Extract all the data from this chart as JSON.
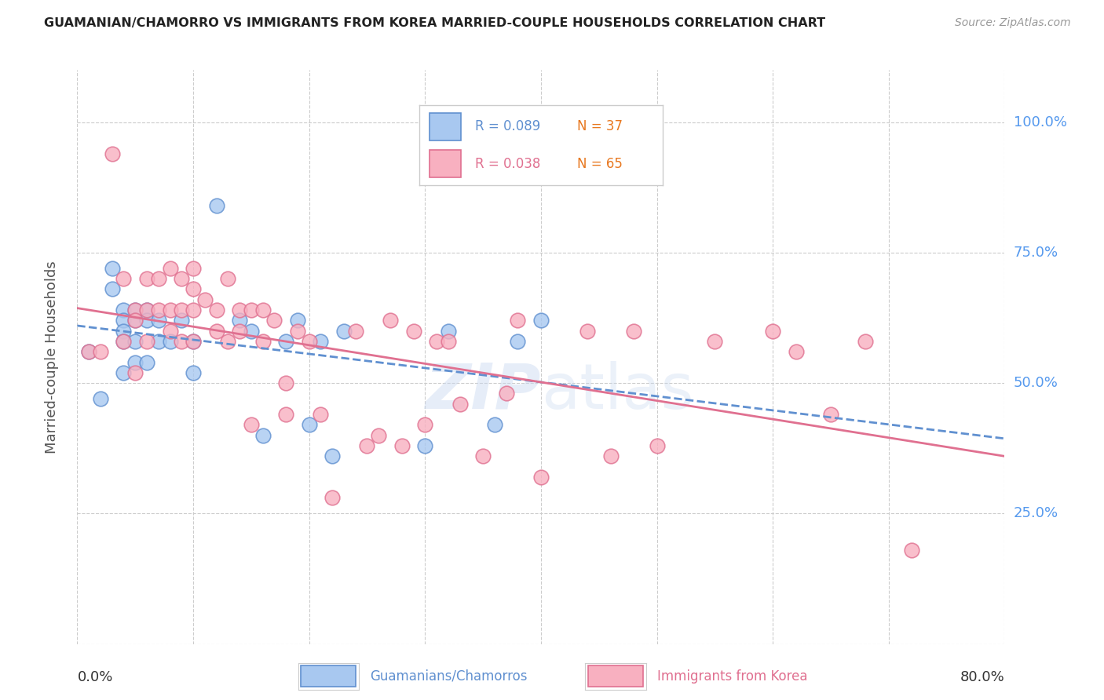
{
  "title": "GUAMANIAN/CHAMORRO VS IMMIGRANTS FROM KOREA MARRIED-COUPLE HOUSEHOLDS CORRELATION CHART",
  "source": "Source: ZipAtlas.com",
  "ylabel": "Married-couple Households",
  "x_min": 0.0,
  "x_max": 0.8,
  "y_min": 0.0,
  "y_max": 1.1,
  "legend_r1": "R = 0.089",
  "legend_n1": "N = 37",
  "legend_r2": "R = 0.038",
  "legend_n2": "N = 65",
  "color_blue_fill": "#A8C8F0",
  "color_blue_edge": "#6090D0",
  "color_pink_fill": "#F8B0C0",
  "color_pink_edge": "#E07090",
  "trend_blue_color": "#6090D0",
  "trend_pink_color": "#E07090",
  "grid_color": "#CCCCCC",
  "background_color": "#FFFFFF",
  "blue_x": [
    0.01,
    0.02,
    0.03,
    0.03,
    0.04,
    0.04,
    0.04,
    0.04,
    0.04,
    0.05,
    0.05,
    0.05,
    0.05,
    0.06,
    0.06,
    0.06,
    0.07,
    0.07,
    0.08,
    0.09,
    0.1,
    0.1,
    0.12,
    0.14,
    0.15,
    0.16,
    0.18,
    0.19,
    0.2,
    0.21,
    0.22,
    0.23,
    0.3,
    0.32,
    0.36,
    0.38,
    0.4
  ],
  "blue_y": [
    0.56,
    0.47,
    0.72,
    0.68,
    0.64,
    0.62,
    0.6,
    0.58,
    0.52,
    0.64,
    0.62,
    0.58,
    0.54,
    0.64,
    0.62,
    0.54,
    0.62,
    0.58,
    0.58,
    0.62,
    0.58,
    0.52,
    0.84,
    0.62,
    0.6,
    0.4,
    0.58,
    0.62,
    0.42,
    0.58,
    0.36,
    0.6,
    0.38,
    0.6,
    0.42,
    0.58,
    0.62
  ],
  "pink_x": [
    0.01,
    0.02,
    0.03,
    0.04,
    0.04,
    0.05,
    0.05,
    0.05,
    0.06,
    0.06,
    0.06,
    0.07,
    0.07,
    0.08,
    0.08,
    0.08,
    0.09,
    0.09,
    0.09,
    0.1,
    0.1,
    0.1,
    0.1,
    0.11,
    0.12,
    0.12,
    0.13,
    0.13,
    0.14,
    0.14,
    0.15,
    0.15,
    0.16,
    0.16,
    0.17,
    0.18,
    0.18,
    0.19,
    0.2,
    0.21,
    0.22,
    0.24,
    0.25,
    0.26,
    0.27,
    0.28,
    0.29,
    0.3,
    0.31,
    0.32,
    0.33,
    0.35,
    0.37,
    0.38,
    0.4,
    0.44,
    0.46,
    0.48,
    0.5,
    0.55,
    0.6,
    0.62,
    0.65,
    0.68,
    0.72
  ],
  "pink_y": [
    0.56,
    0.56,
    0.94,
    0.7,
    0.58,
    0.64,
    0.62,
    0.52,
    0.7,
    0.64,
    0.58,
    0.7,
    0.64,
    0.72,
    0.64,
    0.6,
    0.7,
    0.64,
    0.58,
    0.72,
    0.68,
    0.64,
    0.58,
    0.66,
    0.64,
    0.6,
    0.7,
    0.58,
    0.64,
    0.6,
    0.64,
    0.42,
    0.64,
    0.58,
    0.62,
    0.5,
    0.44,
    0.6,
    0.58,
    0.44,
    0.28,
    0.6,
    0.38,
    0.4,
    0.62,
    0.38,
    0.6,
    0.42,
    0.58,
    0.58,
    0.46,
    0.36,
    0.48,
    0.62,
    0.32,
    0.6,
    0.36,
    0.6,
    0.38,
    0.58,
    0.6,
    0.56,
    0.44,
    0.58,
    0.18
  ]
}
